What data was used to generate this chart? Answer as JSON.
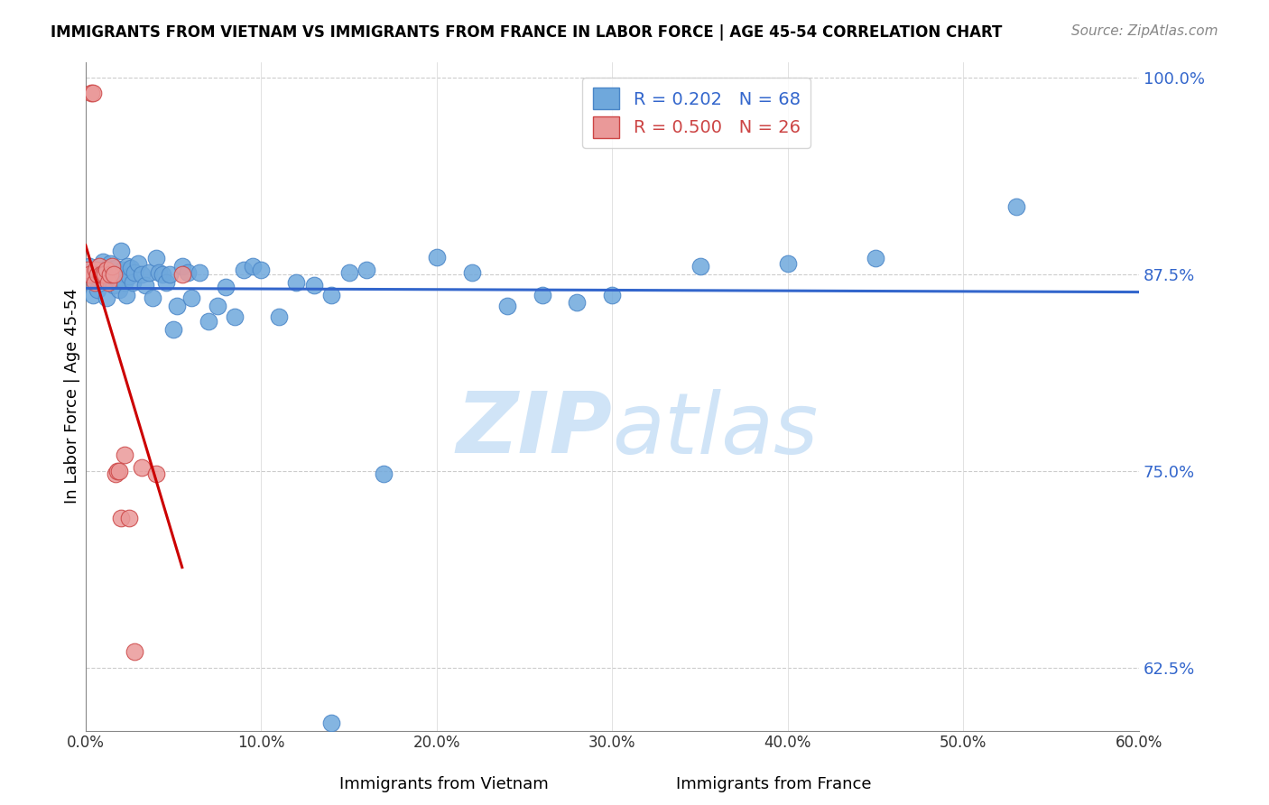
{
  "title": "IMMIGRANTS FROM VIETNAM VS IMMIGRANTS FROM FRANCE IN LABOR FORCE | AGE 45-54 CORRELATION CHART",
  "source": "Source: ZipAtlas.com",
  "xlabel": "",
  "ylabel": "In Labor Force | Age 45-54",
  "xlim": [
    0.0,
    0.6
  ],
  "ylim": [
    0.585,
    1.01
  ],
  "xticks": [
    0.0,
    0.1,
    0.2,
    0.3,
    0.4,
    0.5,
    0.6
  ],
  "xticklabels": [
    "0.0%",
    "10.0%",
    "20.0%",
    "30.0%",
    "40.0%",
    "50.0%",
    "60.0%"
  ],
  "yticks": [
    0.625,
    0.75,
    0.875,
    1.0
  ],
  "yticklabels": [
    "62.5%",
    "75.0%",
    "87.5%",
    "100.0%"
  ],
  "legend_items": [
    {
      "label": "R = 0.202   N = 68",
      "color": "#6fa8dc"
    },
    {
      "label": "R = 0.500   N = 26",
      "color": "#ea9999"
    }
  ],
  "blue_color": "#6fa8dc",
  "pink_color": "#ea9999",
  "blue_edge": "#4a86c8",
  "pink_edge": "#cc4444",
  "trend_blue": "#3366cc",
  "trend_pink": "#cc0000",
  "watermark": "ZIPatlas",
  "watermark_color": "#d0e4f7",
  "vietnam_x": [
    0.002,
    0.003,
    0.004,
    0.005,
    0.006,
    0.007,
    0.008,
    0.009,
    0.01,
    0.011,
    0.012,
    0.013,
    0.014,
    0.015,
    0.016,
    0.017,
    0.018,
    0.019,
    0.02,
    0.021,
    0.022,
    0.023,
    0.024,
    0.025,
    0.026,
    0.027,
    0.028,
    0.03,
    0.032,
    0.034,
    0.036,
    0.038,
    0.04,
    0.042,
    0.044,
    0.046,
    0.048,
    0.05,
    0.052,
    0.055,
    0.058,
    0.06,
    0.065,
    0.07,
    0.075,
    0.08,
    0.085,
    0.09,
    0.095,
    0.1,
    0.11,
    0.12,
    0.13,
    0.14,
    0.15,
    0.16,
    0.17,
    0.2,
    0.22,
    0.24,
    0.26,
    0.28,
    0.3,
    0.35,
    0.4,
    0.45,
    0.53,
    0.14
  ],
  "vietnam_y": [
    0.88,
    0.875,
    0.862,
    0.87,
    0.878,
    0.865,
    0.872,
    0.878,
    0.883,
    0.875,
    0.86,
    0.871,
    0.882,
    0.876,
    0.868,
    0.879,
    0.872,
    0.865,
    0.89,
    0.878,
    0.87,
    0.862,
    0.88,
    0.874,
    0.879,
    0.87,
    0.876,
    0.882,
    0.875,
    0.868,
    0.876,
    0.86,
    0.885,
    0.876,
    0.875,
    0.87,
    0.875,
    0.84,
    0.855,
    0.88,
    0.876,
    0.86,
    0.876,
    0.845,
    0.855,
    0.867,
    0.848,
    0.878,
    0.88,
    0.878,
    0.848,
    0.87,
    0.868,
    0.862,
    0.876,
    0.878,
    0.748,
    0.886,
    0.876,
    0.855,
    0.862,
    0.857,
    0.862,
    0.88,
    0.882,
    0.885,
    0.918,
    0.59
  ],
  "france_x": [
    0.001,
    0.002,
    0.003,
    0.004,
    0.005,
    0.006,
    0.007,
    0.008,
    0.009,
    0.01,
    0.011,
    0.012,
    0.013,
    0.014,
    0.015,
    0.016,
    0.017,
    0.018,
    0.019,
    0.02,
    0.022,
    0.025,
    0.028,
    0.032,
    0.04,
    0.055
  ],
  "france_y": [
    0.878,
    0.875,
    0.99,
    0.99,
    0.87,
    0.878,
    0.875,
    0.88,
    0.875,
    0.875,
    0.875,
    0.878,
    0.87,
    0.875,
    0.88,
    0.875,
    0.748,
    0.75,
    0.75,
    0.72,
    0.76,
    0.72,
    0.635,
    0.752,
    0.748,
    0.875
  ],
  "R_vietnam": 0.202,
  "N_vietnam": 68,
  "R_france": 0.5,
  "N_france": 26
}
